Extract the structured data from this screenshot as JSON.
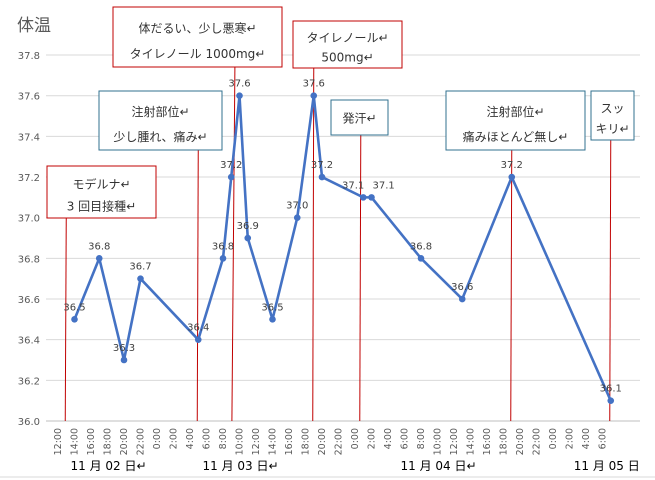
{
  "chart_data": {
    "type": "line",
    "title": "体温",
    "xlabel": "",
    "ylabel": "",
    "ylim": [
      36.0,
      37.8
    ],
    "yticks": [
      "36.0",
      "36.2",
      "36.4",
      "36.6",
      "36.8",
      "37.0",
      "37.2",
      "37.4",
      "37.6",
      "37.8"
    ],
    "xunit": "hours since 11月02日 12:00",
    "xlim": [
      0,
      66
    ],
    "xticks": [
      "12:00",
      "14:00",
      "16:00",
      "18:00",
      "20:00",
      "22:00",
      "0:00",
      "2:00",
      "4:00",
      "6:00",
      "8:00",
      "10:00",
      "12:00",
      "14:00",
      "16:00",
      "18:00",
      "20:00",
      "22:00",
      "0:00",
      "2:00",
      "4:00",
      "6:00",
      "8:00",
      "10:00",
      "12:00",
      "14:00",
      "16:00",
      "18:00",
      "20:00",
      "22:00",
      "0:00",
      "2:00",
      "4:00",
      "6:00"
    ],
    "date_labels": [
      {
        "label": "11 月 02 日↵",
        "hour": 2
      },
      {
        "label": "11 月 03 日↵",
        "hour": 18
      },
      {
        "label": "11 月 04 日↵",
        "hour": 42
      },
      {
        "label": "11 月 05 日",
        "hour": 63
      }
    ],
    "grid": true,
    "series": [
      {
        "name": "体温",
        "color": "#4472C4",
        "x": [
          2,
          5,
          8,
          10,
          17,
          20,
          21,
          22,
          23,
          26,
          29,
          31,
          32,
          37,
          38,
          44,
          49,
          55,
          67
        ],
        "values": [
          36.5,
          36.8,
          36.3,
          36.7,
          36.4,
          36.8,
          37.2,
          37.6,
          36.9,
          36.5,
          37.0,
          37.6,
          37.2,
          37.1,
          37.1,
          36.8,
          36.6,
          37.2,
          36.1
        ],
        "labels": [
          "36.5",
          "36.8",
          "36.3",
          "36.7",
          "36.4",
          "36.8",
          "37.2",
          "37.6",
          "36.9",
          "36.5",
          "37.0",
          "37.6",
          "37.2",
          "37.1",
          "37.1",
          "36.8",
          "36.6",
          "37.2",
          "36.1"
        ]
      }
    ],
    "annotations": [
      {
        "lines": [
          "モデルナ↵",
          "3 回目接種↵"
        ],
        "hour": 1,
        "border": "#C00000"
      },
      {
        "lines": [
          "注射部位↵",
          "少し腫れ、痛み↵"
        ],
        "hour": 17,
        "border": "#31708F"
      },
      {
        "lines": [
          "体だるい、少し悪寒↵",
          "タイレノール 1000mg↵"
        ],
        "hour": 21.2,
        "border": "#C00000"
      },
      {
        "lines": [
          "タイレノール↵",
          "500mg↵"
        ],
        "hour": 31,
        "border": "#C00000"
      },
      {
        "lines": [
          "発汗↵"
        ],
        "hour": 36.7,
        "border": "#31708F"
      },
      {
        "lines": [
          "注射部位↵",
          "痛みほとんど無し↵"
        ],
        "hour": 55,
        "border": "#31708F"
      },
      {
        "lines": [
          "スッ",
          "キリ↵"
        ],
        "hour": 67,
        "border": "#31708F"
      }
    ]
  }
}
